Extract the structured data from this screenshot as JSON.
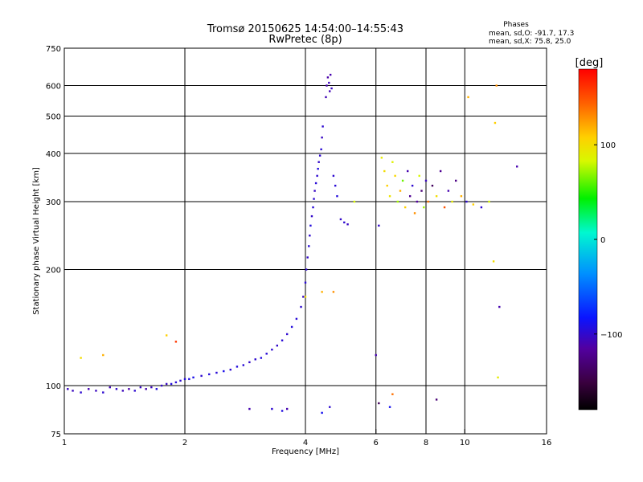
{
  "title_line1": "Tromsø 20150625 14:54:00–14:55:43",
  "title_line2": "RwPretec (8p)",
  "phases": {
    "heading": "Phases",
    "line_o": "mean, sd,O: -91.7, 17.3",
    "line_x": "mean, sd,X:  75.8, 25.0"
  },
  "colorbar": {
    "label": "[deg]",
    "range": [
      -180,
      180
    ],
    "ticks": [
      100,
      0,
      -100
    ],
    "tick_labels": [
      "100",
      "0",
      "−100"
    ]
  },
  "chart_data": {
    "type": "scatter",
    "xlabel": "Frequency [MHz]",
    "ylabel": "Stationary phase Virtual Height [km]",
    "x_scale": "log",
    "y_scale": "log",
    "xlim": [
      1,
      16
    ],
    "ylim": [
      75,
      750
    ],
    "x_ticks": [
      1,
      2,
      4,
      6,
      8,
      10,
      16
    ],
    "x_tick_labels": [
      "1",
      "2",
      "4",
      "6",
      "8",
      "10",
      "16"
    ],
    "y_ticks": [
      75,
      100,
      200,
      300,
      400,
      500,
      600,
      750
    ],
    "y_tick_labels": [
      "75",
      "100",
      "200",
      "300",
      "400",
      "500",
      "600",
      "750"
    ],
    "grid_x": [
      2,
      4,
      6,
      8,
      10
    ],
    "grid_y": [
      100,
      200,
      300,
      400,
      500,
      600
    ],
    "points": [
      [
        1.02,
        98,
        -105
      ],
      [
        1.05,
        97,
        -105
      ],
      [
        1.1,
        96,
        -100
      ],
      [
        1.15,
        98,
        -110
      ],
      [
        1.2,
        97,
        -105
      ],
      [
        1.25,
        96,
        -100
      ],
      [
        1.3,
        99,
        -108
      ],
      [
        1.35,
        98,
        -102
      ],
      [
        1.4,
        97,
        -106
      ],
      [
        1.45,
        98,
        -112
      ],
      [
        1.5,
        97,
        -100
      ],
      [
        1.55,
        99,
        -104
      ],
      [
        1.6,
        98,
        -110
      ],
      [
        1.65,
        99,
        -106
      ],
      [
        1.7,
        98,
        -96
      ],
      [
        1.75,
        100,
        -102
      ],
      [
        1.8,
        101,
        -104
      ],
      [
        1.85,
        101,
        -96
      ],
      [
        1.9,
        102,
        -98
      ],
      [
        1.95,
        103,
        -100
      ],
      [
        2.0,
        104,
        -96
      ],
      [
        2.05,
        104,
        -94
      ],
      [
        2.1,
        105,
        -92
      ],
      [
        2.2,
        106,
        -100
      ],
      [
        2.3,
        107,
        -96
      ],
      [
        2.4,
        108,
        -98
      ],
      [
        2.5,
        109,
        -92
      ],
      [
        2.6,
        110,
        -100
      ],
      [
        2.7,
        112,
        -96
      ],
      [
        2.8,
        113,
        -98
      ],
      [
        2.9,
        115,
        -102
      ],
      [
        3.0,
        117,
        -100
      ],
      [
        3.1,
        118,
        -96
      ],
      [
        3.2,
        121,
        -98
      ],
      [
        3.3,
        124,
        -100
      ],
      [
        3.4,
        127,
        -102
      ],
      [
        3.5,
        131,
        -98
      ],
      [
        3.6,
        136,
        -100
      ],
      [
        3.7,
        142,
        -96
      ],
      [
        3.8,
        149,
        -98
      ],
      [
        3.9,
        160,
        -100
      ],
      [
        3.95,
        170,
        -104
      ],
      [
        4.0,
        185,
        -98
      ],
      [
        4.02,
        200,
        -100
      ],
      [
        4.05,
        215,
        -102
      ],
      [
        4.08,
        230,
        -98
      ],
      [
        4.1,
        245,
        -100
      ],
      [
        4.12,
        260,
        -96
      ],
      [
        4.15,
        275,
        -102
      ],
      [
        4.18,
        290,
        -98
      ],
      [
        4.2,
        305,
        -100
      ],
      [
        4.22,
        320,
        -104
      ],
      [
        4.25,
        335,
        -98
      ],
      [
        4.28,
        350,
        -100
      ],
      [
        4.3,
        365,
        -96
      ],
      [
        4.32,
        380,
        -102
      ],
      [
        4.35,
        395,
        -100
      ],
      [
        4.38,
        410,
        -98
      ],
      [
        4.4,
        440,
        -104
      ],
      [
        4.42,
        470,
        -100
      ],
      [
        4.5,
        560,
        -108
      ],
      [
        4.52,
        600,
        -110
      ],
      [
        4.55,
        630,
        -112
      ],
      [
        4.58,
        610,
        -106
      ],
      [
        4.6,
        580,
        -108
      ],
      [
        4.62,
        640,
        -110
      ],
      [
        4.65,
        590,
        -104
      ],
      [
        4.7,
        350,
        -100
      ],
      [
        4.75,
        330,
        -98
      ],
      [
        4.8,
        310,
        -96
      ],
      [
        4.9,
        270,
        -102
      ],
      [
        5.0,
        265,
        -100
      ],
      [
        5.1,
        262,
        -104
      ],
      [
        5.3,
        300,
        80
      ],
      [
        6.1,
        260,
        -102
      ],
      [
        6.2,
        390,
        90
      ],
      [
        6.3,
        360,
        100
      ],
      [
        6.4,
        330,
        110
      ],
      [
        6.5,
        310,
        95
      ],
      [
        6.6,
        380,
        85
      ],
      [
        6.7,
        350,
        105
      ],
      [
        6.8,
        300,
        70
      ],
      [
        6.9,
        320,
        120
      ],
      [
        7.0,
        340,
        60
      ],
      [
        7.1,
        290,
        110
      ],
      [
        7.2,
        360,
        -110
      ],
      [
        7.3,
        310,
        -120
      ],
      [
        7.4,
        330,
        -100
      ],
      [
        7.5,
        280,
        130
      ],
      [
        7.6,
        300,
        -115
      ],
      [
        7.7,
        350,
        80
      ],
      [
        7.8,
        320,
        -130
      ],
      [
        7.9,
        290,
        70
      ],
      [
        8.0,
        340,
        -105
      ],
      [
        8.1,
        300,
        140
      ],
      [
        8.3,
        330,
        -140
      ],
      [
        8.5,
        310,
        100
      ],
      [
        8.7,
        360,
        -120
      ],
      [
        8.9,
        290,
        150
      ],
      [
        9.1,
        320,
        -110
      ],
      [
        9.3,
        300,
        90
      ],
      [
        9.5,
        340,
        -125
      ],
      [
        9.8,
        310,
        120
      ],
      [
        10.1,
        300,
        -100
      ],
      [
        10.5,
        295,
        110
      ],
      [
        11.0,
        290,
        -100
      ],
      [
        11.5,
        300,
        80
      ],
      [
        12.0,
        600,
        130
      ],
      [
        11.9,
        480,
        110
      ],
      [
        12.1,
        105,
        90
      ],
      [
        12.2,
        160,
        -110
      ],
      [
        11.8,
        210,
        100
      ],
      [
        13.5,
        370,
        -110
      ],
      [
        10.2,
        560,
        120
      ],
      [
        2.9,
        87,
        -110
      ],
      [
        3.3,
        87,
        -100
      ],
      [
        3.5,
        86,
        -95
      ],
      [
        3.6,
        87,
        -110
      ],
      [
        4.4,
        85,
        -90
      ],
      [
        4.6,
        88,
        -100
      ],
      [
        6.0,
        120,
        -110
      ],
      [
        6.1,
        90,
        -140
      ],
      [
        6.5,
        88,
        -90
      ],
      [
        6.6,
        95,
        140
      ],
      [
        8.5,
        92,
        -130
      ],
      [
        1.1,
        118,
        100
      ],
      [
        1.25,
        120,
        120
      ],
      [
        1.8,
        135,
        110
      ],
      [
        1.9,
        130,
        160
      ],
      [
        4.4,
        175,
        120
      ],
      [
        4.7,
        175,
        130
      ],
      [
        4.0,
        170,
        100
      ]
    ]
  }
}
